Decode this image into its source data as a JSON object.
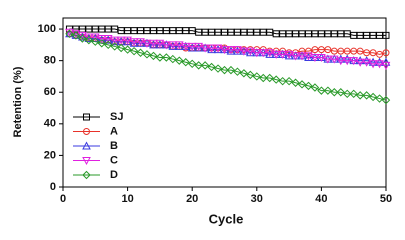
{
  "chart_data": {
    "type": "line",
    "xlabel": "Cycle",
    "ylabel": "Retention (%)",
    "x": [
      1,
      2,
      3,
      4,
      5,
      6,
      7,
      8,
      9,
      10,
      11,
      12,
      13,
      14,
      15,
      16,
      17,
      18,
      19,
      20,
      21,
      22,
      23,
      24,
      25,
      26,
      27,
      28,
      29,
      30,
      31,
      32,
      33,
      34,
      35,
      36,
      37,
      38,
      39,
      40,
      41,
      42,
      43,
      44,
      45,
      46,
      47,
      48,
      49,
      50
    ],
    "series": [
      {
        "name": "SJ",
        "color": "#000000",
        "marker": "square",
        "values": [
          100,
          100,
          100,
          100,
          100,
          100,
          100,
          100,
          99,
          99,
          99,
          99,
          99,
          99,
          99,
          99,
          99,
          99,
          99,
          99,
          98,
          98,
          98,
          98,
          98,
          98,
          98,
          98,
          98,
          98,
          98,
          98,
          97,
          97,
          97,
          97,
          97,
          97,
          97,
          97,
          97,
          97,
          97,
          97,
          96,
          96,
          96,
          96,
          96,
          96
        ]
      },
      {
        "name": "A",
        "color": "#e8322a",
        "marker": "circle",
        "values": [
          97,
          96,
          95,
          94,
          94,
          93,
          93,
          92,
          92,
          92,
          91,
          91,
          91,
          90,
          90,
          90,
          89,
          89,
          88,
          88,
          88,
          88,
          88,
          88,
          88,
          87,
          87,
          87,
          87,
          87,
          87,
          86,
          86,
          86,
          85,
          85,
          86,
          86,
          87,
          87,
          87,
          86,
          86,
          86,
          86,
          86,
          85,
          85,
          84,
          85
        ]
      },
      {
        "name": "B",
        "color": "#3a3ae0",
        "marker": "triangle",
        "values": [
          97,
          96,
          95,
          94,
          94,
          93,
          93,
          92,
          92,
          92,
          91,
          91,
          91,
          90,
          90,
          90,
          89,
          89,
          89,
          88,
          88,
          88,
          87,
          87,
          87,
          86,
          86,
          86,
          85,
          85,
          85,
          84,
          84,
          84,
          83,
          83,
          83,
          82,
          82,
          82,
          81,
          81,
          81,
          81,
          80,
          80,
          80,
          79,
          79,
          79
        ]
      },
      {
        "name": "C",
        "color": "#e020e0",
        "marker": "triangle-down",
        "values": [
          98,
          97,
          96,
          95,
          95,
          94,
          94,
          93,
          93,
          93,
          92,
          92,
          91,
          91,
          91,
          90,
          90,
          90,
          89,
          89,
          89,
          88,
          88,
          88,
          87,
          87,
          87,
          86,
          86,
          85,
          85,
          85,
          84,
          84,
          84,
          83,
          83,
          83,
          82,
          82,
          81,
          81,
          80,
          80,
          80,
          79,
          79,
          78,
          78,
          77
        ]
      },
      {
        "name": "D",
        "color": "#2a9a2a",
        "marker": "diamond",
        "values": [
          97,
          96,
          94,
          93,
          92,
          91,
          90,
          89,
          88,
          87,
          86,
          85,
          84,
          83,
          82,
          82,
          81,
          80,
          79,
          78,
          77,
          77,
          76,
          75,
          74,
          74,
          73,
          72,
          71,
          70,
          69,
          69,
          68,
          67,
          67,
          66,
          65,
          64,
          63,
          61,
          61,
          60,
          60,
          59,
          59,
          58,
          58,
          57,
          56,
          55
        ]
      }
    ],
    "xlim": [
      0,
      50
    ],
    "xticks": [
      0,
      10,
      20,
      30,
      40,
      50
    ],
    "ylim": [
      0,
      107
    ],
    "yticks": [
      0,
      20,
      40,
      60,
      80,
      100
    ],
    "legend": "lower left"
  }
}
